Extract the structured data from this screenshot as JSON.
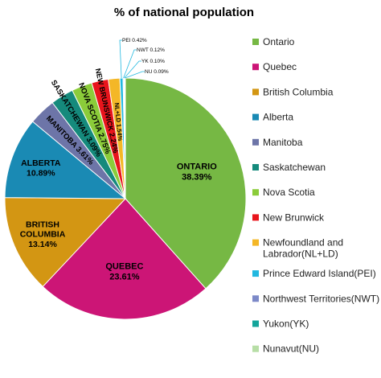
{
  "chart_data": {
    "type": "pie",
    "title": "% of national population",
    "categories": [
      "Ontario",
      "Quebec",
      "British Columbia",
      "Alberta",
      "Manitoba",
      "Saskatchewan",
      "Nova Scotia",
      "New Brunwick",
      "Newfoundland and Labrador(NL+LD)",
      "Prince Edward Island(PEI)",
      "Northwest Territories(NWT)",
      "Yukon(YK)",
      "Nunavut(NU)"
    ],
    "values": [
      38.39,
      23.61,
      13.14,
      10.89,
      3.61,
      3.09,
      2.75,
      2.24,
      1.54,
      0.42,
      0.12,
      0.1,
      0.09
    ],
    "colors": [
      "#76b844",
      "#cc1576",
      "#d39613",
      "#1a8ab4",
      "#6d75a8",
      "#158a7c",
      "#8bcc3a",
      "#e8151c",
      "#f4b727",
      "#21b8e0",
      "#7c89c8",
      "#14a59b",
      "#b7dea6"
    ],
    "slice_labels": [
      [
        "ONTARIO",
        "38.39%"
      ],
      [
        "QUEBEC",
        "23.61%"
      ],
      [
        "BRITISH",
        "COLUMBIA",
        "13.14%"
      ],
      [
        "ALBERTA",
        "10.89%"
      ],
      [
        "MANITOBA 3.61%"
      ],
      [
        "SASKATCHEWAN 3.09%"
      ],
      [
        "NOVA SCOTIA 2.75%"
      ],
      [
        "NEW BRUNSWICK 2.24%"
      ],
      [
        "NL+LD 1.54%"
      ],
      [
        "PEI 0.42%"
      ],
      [
        "NWT 0.12%"
      ],
      [
        "YK 0.10%"
      ],
      [
        "NU 0.09%"
      ]
    ],
    "legend_entries": [
      [
        "Ontario"
      ],
      [
        "Quebec"
      ],
      [
        "British Columbia"
      ],
      [
        "Alberta"
      ],
      [
        "Manitoba"
      ],
      [
        "Saskatchewan"
      ],
      [
        "Nova Scotia"
      ],
      [
        "New Brunwick"
      ],
      [
        "Newfoundland and",
        "Labrador(NL+LD)"
      ],
      [
        "Prince Edward Island(PEI)"
      ],
      [
        "Northwest Territories(NWT)"
      ],
      [
        "Yukon(YK)"
      ],
      [
        "Nunavut(NU)"
      ]
    ],
    "legend_placement": "right"
  }
}
